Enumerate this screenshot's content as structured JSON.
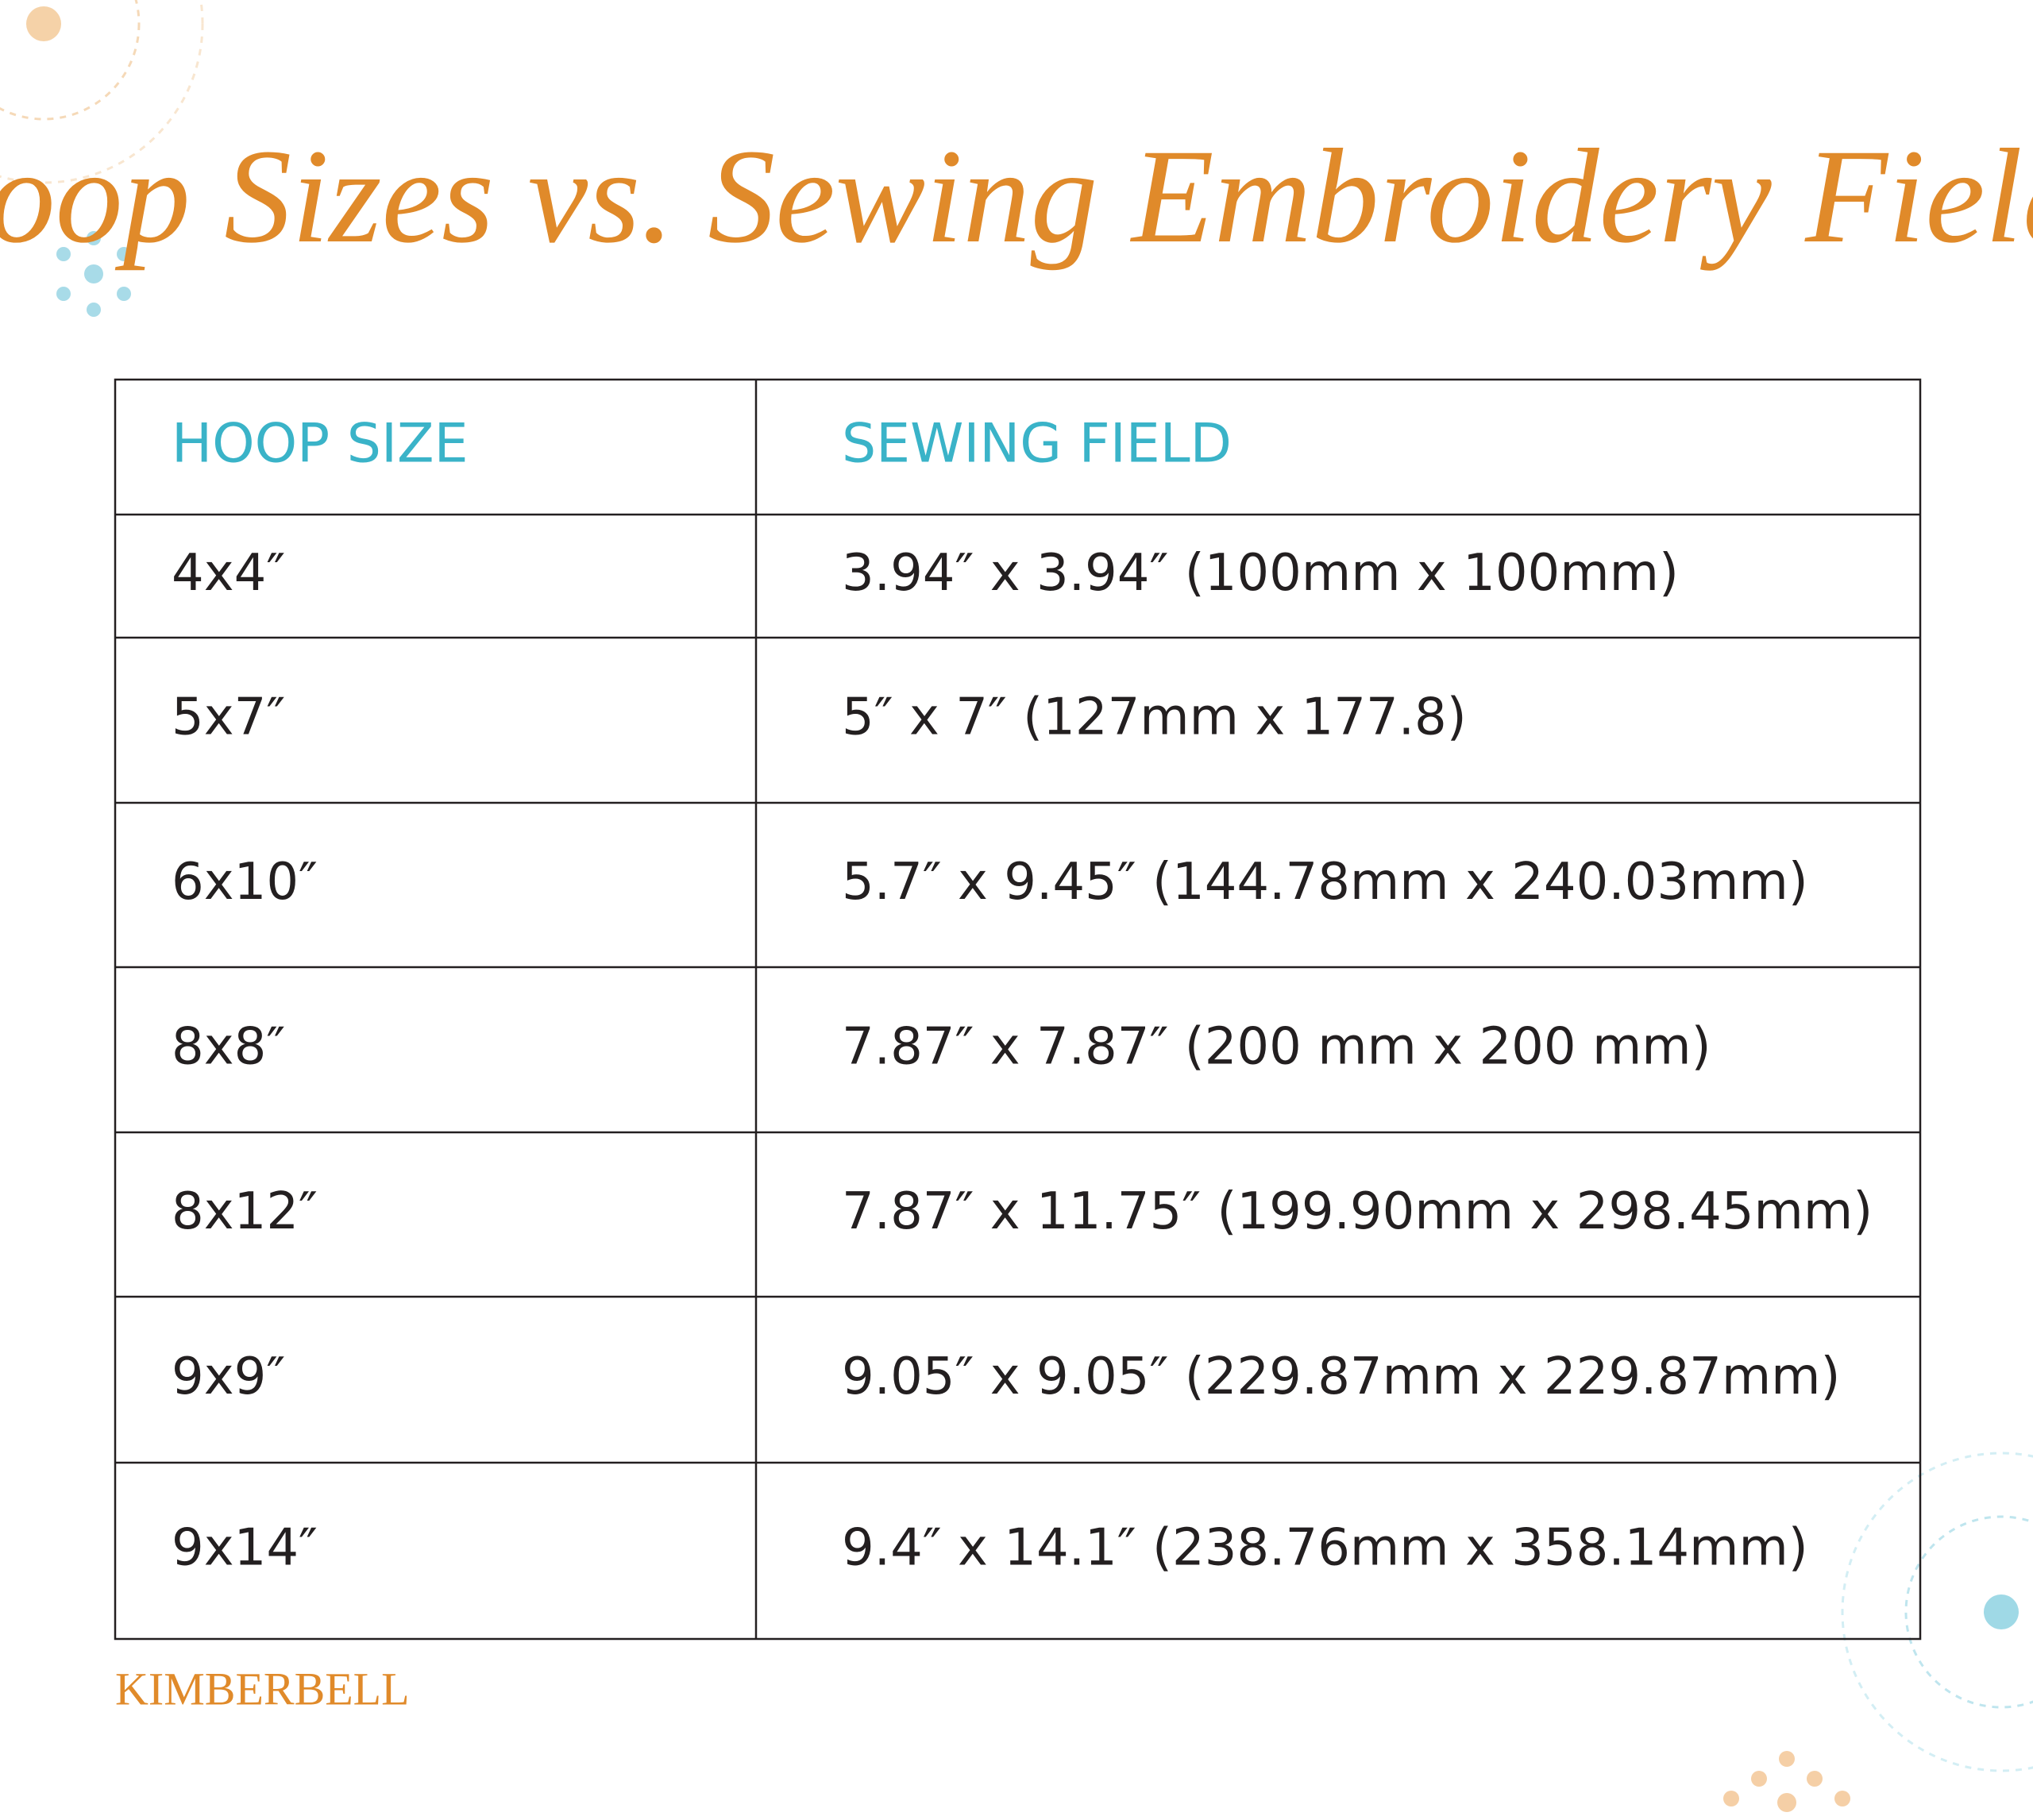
{
  "title": "Hoop Sizes vs. Sewing Embroidery Fields",
  "table": {
    "headers": [
      "HOOP SIZE",
      "SEWING FIELD"
    ],
    "rows": [
      [
        "4x4″",
        "3.94″ x 3.94″ (100mm x 100mm)"
      ],
      [
        "5x7″",
        "5″ x 7″ (127mm x 177.8)"
      ],
      [
        "6x10″",
        "5.7″ x 9.45″ (144.78mm x 240.03mm)"
      ],
      [
        "8x8″",
        "7.87″ x 7.87″ (200 mm x 200 mm)"
      ],
      [
        "8x12″",
        "7.87″ x 11.75″ (199.90mm x 298.45mm)"
      ],
      [
        "9x9″",
        "9.05″ x 9.05″ (229.87mm x 229.87mm)"
      ],
      [
        "9x14″",
        "9.4″ x 14.1″ (238.76mm x 358.14mm)"
      ]
    ]
  },
  "logo": "KIMBERBELL"
}
